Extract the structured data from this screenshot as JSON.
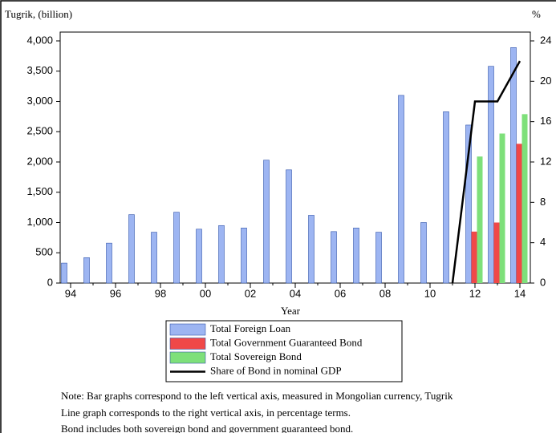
{
  "chart_data": {
    "type": "bar",
    "y_axis_label": "Tugrik, (billion)",
    "y2_axis_label": "%",
    "x_axis_label": "Year",
    "categories": [
      "94",
      null,
      "96",
      null,
      "98",
      null,
      "00",
      null,
      "02",
      null,
      "04",
      null,
      "06",
      null,
      "08",
      null,
      "10",
      null,
      "12",
      null,
      "14"
    ],
    "series": [
      {
        "name": "Total Foreign Loan",
        "color": "#9db5f2",
        "values": [
          330,
          420,
          660,
          1130,
          840,
          1170,
          890,
          950,
          910,
          2030,
          1870,
          1120,
          850,
          910,
          840,
          3100,
          1000,
          2830,
          2610,
          3580,
          3890
        ]
      },
      {
        "name": "Total Government Guaranteed Bond",
        "color": "#f04848",
        "values": [
          null,
          null,
          null,
          null,
          null,
          null,
          null,
          null,
          null,
          null,
          null,
          null,
          null,
          null,
          null,
          null,
          null,
          null,
          850,
          1000,
          2300
        ]
      },
      {
        "name": "Total Sovereign Bond",
        "color": "#7ee07a",
        "values": [
          null,
          null,
          null,
          null,
          null,
          null,
          null,
          null,
          null,
          null,
          null,
          null,
          null,
          null,
          null,
          null,
          null,
          null,
          2090,
          2470,
          2790
        ]
      },
      {
        "name": "Share of Bond in nominal GDP",
        "type": "line",
        "axis": "y2",
        "color": "#000000",
        "values": [
          null,
          null,
          null,
          null,
          null,
          null,
          null,
          null,
          null,
          null,
          null,
          null,
          null,
          null,
          null,
          null,
          null,
          0,
          18,
          18,
          22
        ]
      }
    ],
    "ylim": [
      0,
      4000
    ],
    "yticks": [
      0,
      500,
      {
        "value": 1000,
        "label": "1,000"
      },
      {
        "value": 1500,
        "label": "1,500"
      },
      {
        "value": 2000,
        "label": "2,000"
      },
      {
        "value": 2500,
        "label": "2,500"
      },
      {
        "value": 3000,
        "label": "3,000"
      },
      {
        "value": 3500,
        "label": "3,500"
      },
      {
        "value": 4000,
        "label": "4,000"
      }
    ],
    "y2lim": [
      0,
      24
    ],
    "y2ticks": [
      0,
      4,
      8,
      12,
      16,
      20,
      24
    ],
    "notes": [
      "Note: Bar graphs correspond to the left vertical axis, measured in Mongolian currency, Tugrik",
      "Line graph corresponds to the right vertical axis, in percentage terms.",
      "Bond includes both sovereign bond and government guaranteed bond."
    ]
  }
}
